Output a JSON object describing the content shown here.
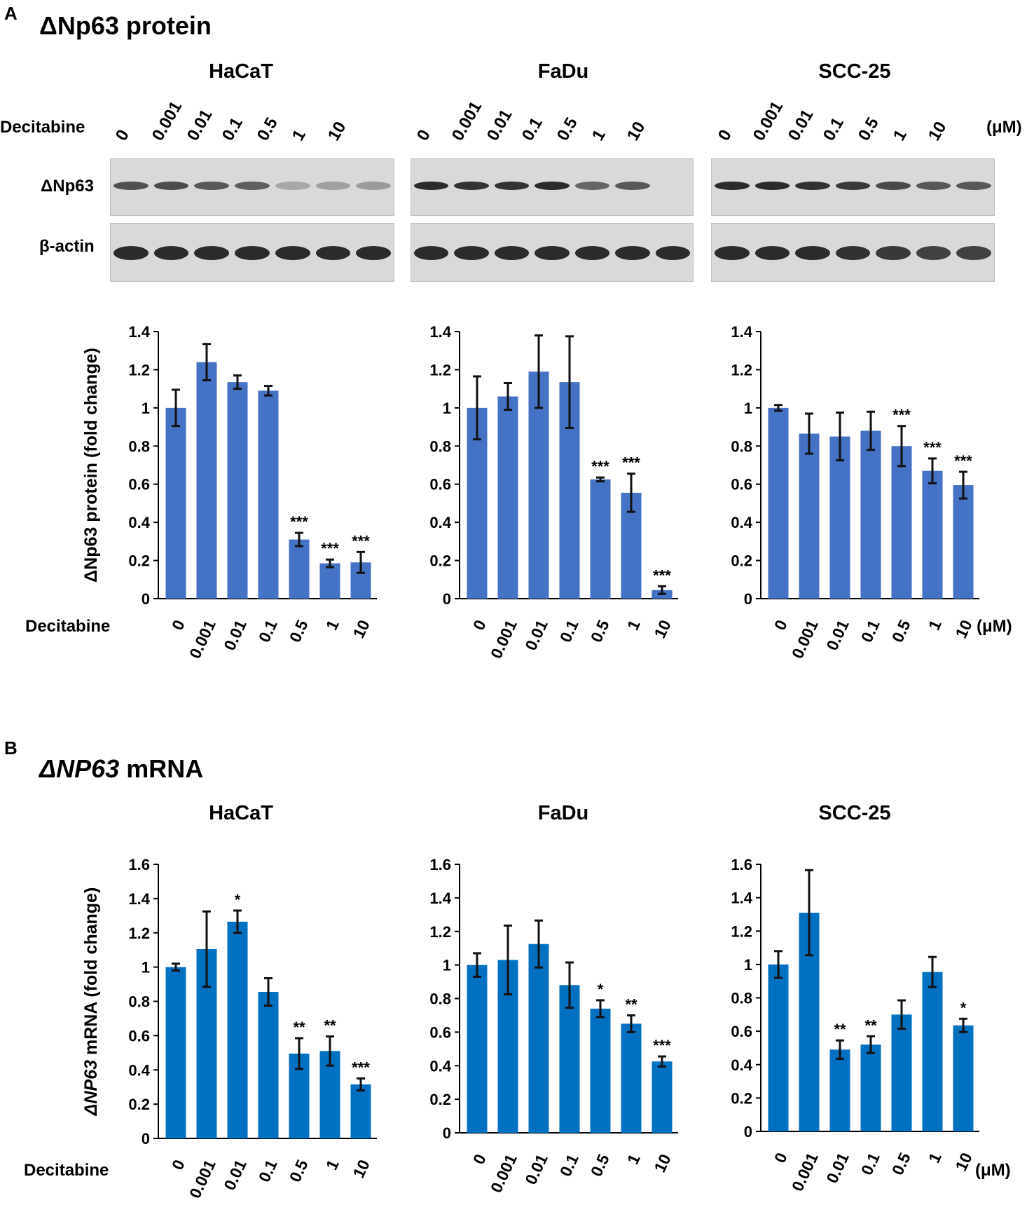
{
  "panel_a": {
    "letter": "A",
    "title": "ΔNp63 protein"
  },
  "panel_b": {
    "letter": "B",
    "title_italic": "ΔNP63",
    "title_rest": " mRNA"
  },
  "cells": [
    "HaCaT",
    "FaDu",
    "SCC-25"
  ],
  "decitabine_label": "Decitabine",
  "unit": "(μM)",
  "blot_labels": {
    "target": "ΔNp63",
    "loading": "β-actin"
  },
  "doses": [
    "0",
    "0.001",
    "0.01",
    "0.1",
    "0.5",
    "1",
    "10"
  ],
  "bar_colors": {
    "protein": "#4472C4",
    "mrna": "#0070C0"
  },
  "ylabel_protein": "ΔNp63 protein (fold change)",
  "ylabel_mrna_italic": "ΔNP63",
  "ylabel_mrna_rest": " mRNA (fold change)",
  "blots": [
    {
      "cell": "HaCaT",
      "target_intensity": [
        0.75,
        0.78,
        0.7,
        0.65,
        0.15,
        0.2,
        0.25
      ],
      "actin_intensity": [
        1,
        1,
        1,
        1,
        1,
        1,
        1
      ]
    },
    {
      "cell": "FaDu",
      "target_intensity": [
        1,
        0.95,
        0.95,
        1,
        0.6,
        0.7,
        0
      ],
      "actin_intensity": [
        1,
        1,
        1,
        1,
        1,
        1,
        1
      ]
    },
    {
      "cell": "SCC-25",
      "target_intensity": [
        1,
        1,
        0.95,
        0.9,
        0.8,
        0.7,
        0.7
      ],
      "actin_intensity": [
        1,
        1,
        1,
        0.95,
        0.9,
        0.85,
        0.85
      ]
    }
  ],
  "chart_data": [
    {
      "type": "bar",
      "panel": "A",
      "cell": "HaCaT",
      "categories": [
        "0",
        "0.001",
        "0.01",
        "0.1",
        "0.5",
        "1",
        "10"
      ],
      "values": [
        1.0,
        1.24,
        1.135,
        1.09,
        0.31,
        0.185,
        0.19
      ],
      "errors": [
        0.095,
        0.095,
        0.035,
        0.025,
        0.035,
        0.02,
        0.055
      ],
      "significance": [
        "",
        "",
        "",
        "",
        "***",
        "***",
        "***"
      ],
      "ylim": [
        0,
        1.4
      ],
      "yticks": [
        "0",
        "0.2",
        "0.4",
        "0.6",
        "0.8",
        "1",
        "1.2",
        "1.4"
      ],
      "tick_step": 0.2,
      "ylabel": "ΔNp63 protein (fold change)",
      "xlabel": "Decitabine (μM)"
    },
    {
      "type": "bar",
      "panel": "A",
      "cell": "FaDu",
      "categories": [
        "0",
        "0.001",
        "0.01",
        "0.1",
        "0.5",
        "1",
        "10"
      ],
      "values": [
        1.0,
        1.06,
        1.19,
        1.135,
        0.625,
        0.555,
        0.045
      ],
      "errors": [
        0.165,
        0.07,
        0.19,
        0.24,
        0.01,
        0.1,
        0.02
      ],
      "significance": [
        "",
        "",
        "",
        "",
        "***",
        "***",
        "***"
      ],
      "ylim": [
        0,
        1.4
      ],
      "yticks": [
        "0",
        "0.2",
        "0.4",
        "0.6",
        "0.8",
        "1",
        "1.2",
        "1.4"
      ],
      "tick_step": 0.2
    },
    {
      "type": "bar",
      "panel": "A",
      "cell": "SCC-25",
      "categories": [
        "0",
        "0.001",
        "0.01",
        "0.1",
        "0.5",
        "1",
        "10"
      ],
      "values": [
        1.0,
        0.865,
        0.85,
        0.88,
        0.8,
        0.67,
        0.595
      ],
      "errors": [
        0.015,
        0.105,
        0.125,
        0.1,
        0.105,
        0.065,
        0.07
      ],
      "significance": [
        "",
        "",
        "",
        "",
        "***",
        "***",
        "***"
      ],
      "ylim": [
        0,
        1.4
      ],
      "yticks": [
        "0",
        "0.2",
        "0.4",
        "0.6",
        "0.8",
        "1",
        "1.2",
        "1.4"
      ],
      "tick_step": 0.2
    },
    {
      "type": "bar",
      "panel": "B",
      "cell": "HaCaT",
      "categories": [
        "0",
        "0.001",
        "0.01",
        "0.1",
        "0.5",
        "1",
        "10"
      ],
      "values": [
        1.0,
        1.105,
        1.265,
        0.855,
        0.495,
        0.51,
        0.315
      ],
      "errors": [
        0.02,
        0.22,
        0.065,
        0.08,
        0.09,
        0.085,
        0.035
      ],
      "significance": [
        "",
        "",
        "*",
        "",
        "**",
        "**",
        "***"
      ],
      "ylim": [
        0,
        1.6
      ],
      "yticks": [
        "0",
        "0.2",
        "0.4",
        "0.6",
        "0.8",
        "1",
        "1.2",
        "1.4",
        "1.6"
      ],
      "tick_step": 0.2,
      "ylabel": "ΔNP63 mRNA (fold change)",
      "xlabel": "Decitabine (μM)"
    },
    {
      "type": "bar",
      "panel": "B",
      "cell": "FaDu",
      "categories": [
        "0",
        "0.001",
        "0.01",
        "0.1",
        "0.5",
        "1",
        "10"
      ],
      "values": [
        1.0,
        1.03,
        1.125,
        0.88,
        0.74,
        0.65,
        0.425
      ],
      "errors": [
        0.07,
        0.205,
        0.14,
        0.135,
        0.05,
        0.05,
        0.03
      ],
      "significance": [
        "",
        "",
        "",
        "",
        "*",
        "**",
        "***"
      ],
      "ylim": [
        0,
        1.6
      ],
      "yticks": [
        "0",
        "0.2",
        "0.4",
        "0.6",
        "0.8",
        "1",
        "1.2",
        "1.4",
        "1.6"
      ],
      "tick_step": 0.2
    },
    {
      "type": "bar",
      "panel": "B",
      "cell": "SCC-25",
      "categories": [
        "0",
        "0.001",
        "0.01",
        "0.1",
        "0.5",
        "1",
        "10"
      ],
      "values": [
        1.0,
        1.31,
        0.49,
        0.52,
        0.7,
        0.955,
        0.635
      ],
      "errors": [
        0.08,
        0.255,
        0.055,
        0.05,
        0.085,
        0.09,
        0.04
      ],
      "significance": [
        "",
        "",
        "**",
        "**",
        "",
        "",
        "*"
      ],
      "ylim": [
        0,
        1.6
      ],
      "yticks": [
        "0",
        "0.2",
        "0.4",
        "0.6",
        "0.8",
        "1",
        "1.2",
        "1.4",
        "1.6"
      ],
      "tick_step": 0.2
    }
  ]
}
